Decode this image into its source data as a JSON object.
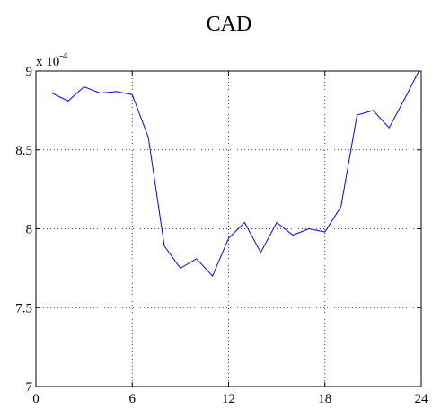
{
  "chart_data": {
    "type": "line",
    "title": "CAD",
    "y_multiplier": "x 10",
    "y_exponent": "-4",
    "x": [
      1,
      2,
      3,
      4,
      5,
      6,
      7,
      8,
      9,
      10,
      11,
      12,
      13,
      14,
      15,
      16,
      17,
      18,
      19,
      20,
      21,
      22,
      23,
      24
    ],
    "series": [
      {
        "color": "#0000ff",
        "values": [
          8.86,
          8.81,
          8.9,
          8.86,
          8.87,
          8.85,
          8.58,
          7.89,
          7.75,
          7.81,
          7.7,
          7.94,
          8.04,
          7.85,
          8.04,
          7.96,
          8.0,
          7.98,
          8.14,
          8.72,
          8.75,
          8.64,
          8.83,
          9.03
        ]
      }
    ],
    "xlim": [
      0,
      24
    ],
    "xticks": [
      0,
      6,
      12,
      18,
      24
    ],
    "ylim": [
      7,
      9
    ],
    "yticks": [
      7,
      7.5,
      8,
      8.5,
      9
    ],
    "grid": true
  }
}
